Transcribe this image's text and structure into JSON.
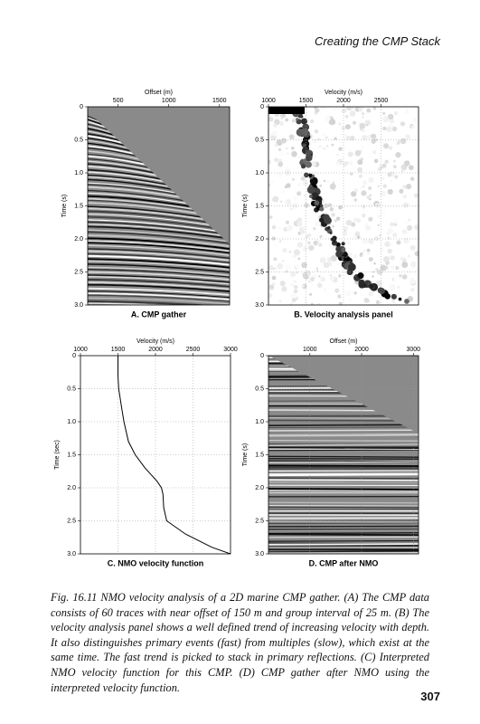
{
  "header": "Creating the CMP Stack",
  "chart_data": [
    {
      "type": "gather",
      "caption": "A. CMP gather",
      "xlabel": "Offset (m)",
      "ylabel": "Time (s)",
      "xlim": [
        200,
        1600
      ],
      "xticks": [
        500,
        1000,
        1500
      ],
      "ylim": [
        0,
        3
      ],
      "yticks": [
        0,
        0.5,
        {
          "value": 1,
          "label": "1.0"
        },
        1.5,
        {
          "value": 2,
          "label": "2.0"
        },
        2.5,
        {
          "value": 3,
          "label": "3.0"
        }
      ],
      "grid": false
    },
    {
      "type": "semblance",
      "caption": "B. Velocity analysis panel",
      "xlabel": "Velocity (m/s)",
      "ylabel": "Time (s)",
      "xlim": [
        1000,
        3000
      ],
      "xticks": [
        1000,
        1500,
        2000,
        2500
      ],
      "ylim": [
        0,
        3
      ],
      "yticks": [
        0,
        0.5,
        {
          "value": 1,
          "label": "1.0"
        },
        1.5,
        {
          "value": 2,
          "label": "2.0"
        },
        2.5,
        {
          "value": 3,
          "label": "3.0"
        }
      ],
      "grid": true
    },
    {
      "type": "line",
      "caption": "C. NMO velocity function",
      "xlabel": "Velocity (m/s)",
      "ylabel": "Time (sec)",
      "xlim": [
        1000,
        3000
      ],
      "xticks": [
        1000,
        1500,
        2000,
        2500,
        3000
      ],
      "ylim": [
        0,
        3
      ],
      "yticks": [
        0,
        0.5,
        {
          "value": 1,
          "label": "1.0"
        },
        1.5,
        {
          "value": 2,
          "label": "2.0"
        },
        2.5,
        {
          "value": 3,
          "label": "3.0"
        }
      ],
      "grid": true,
      "series": [
        {
          "color": "#000000",
          "y": [
            0,
            0.3,
            0.5,
            0.8,
            1.0,
            1.3,
            1.5,
            1.7,
            1.9,
            2.0,
            2.1,
            2.3,
            2.5,
            2.7,
            2.9,
            3.0
          ],
          "values": [
            1500,
            1500,
            1510,
            1550,
            1580,
            1640,
            1730,
            1860,
            2020,
            2080,
            2100,
            2110,
            2150,
            2400,
            2750,
            3000
          ]
        }
      ]
    },
    {
      "type": "gather",
      "caption": "D. CMP after NMO",
      "xlabel": "Offset (m)",
      "ylabel": "Time (s)",
      "xlim": [
        200,
        3100
      ],
      "xticks": [
        1000,
        2000,
        3000
      ],
      "ylim": [
        0,
        3
      ],
      "yticks": [
        0,
        0.5,
        {
          "value": 1,
          "label": "1.0"
        },
        1.5,
        {
          "value": 2,
          "label": "2.0"
        },
        2.5,
        {
          "value": 3,
          "label": "3.0"
        }
      ],
      "grid": true
    }
  ],
  "caption": "Fig. 16.11 NMO velocity analysis of a 2D marine CMP gather. (A) The CMP data consists of 60 traces with near offset of 150 m and group interval of 25 m. (B) The velocity analysis panel shows a well defined trend of increasing velocity with depth. It also distinguishes primary events (fast) from multiples (slow), which exist at the same time. The fast trend is picked to stack in primary reflections. (C) Interpreted NMO velocity function for this CMP. (D) CMP gather after NMO using the interpreted velocity function.",
  "page_number": "307"
}
